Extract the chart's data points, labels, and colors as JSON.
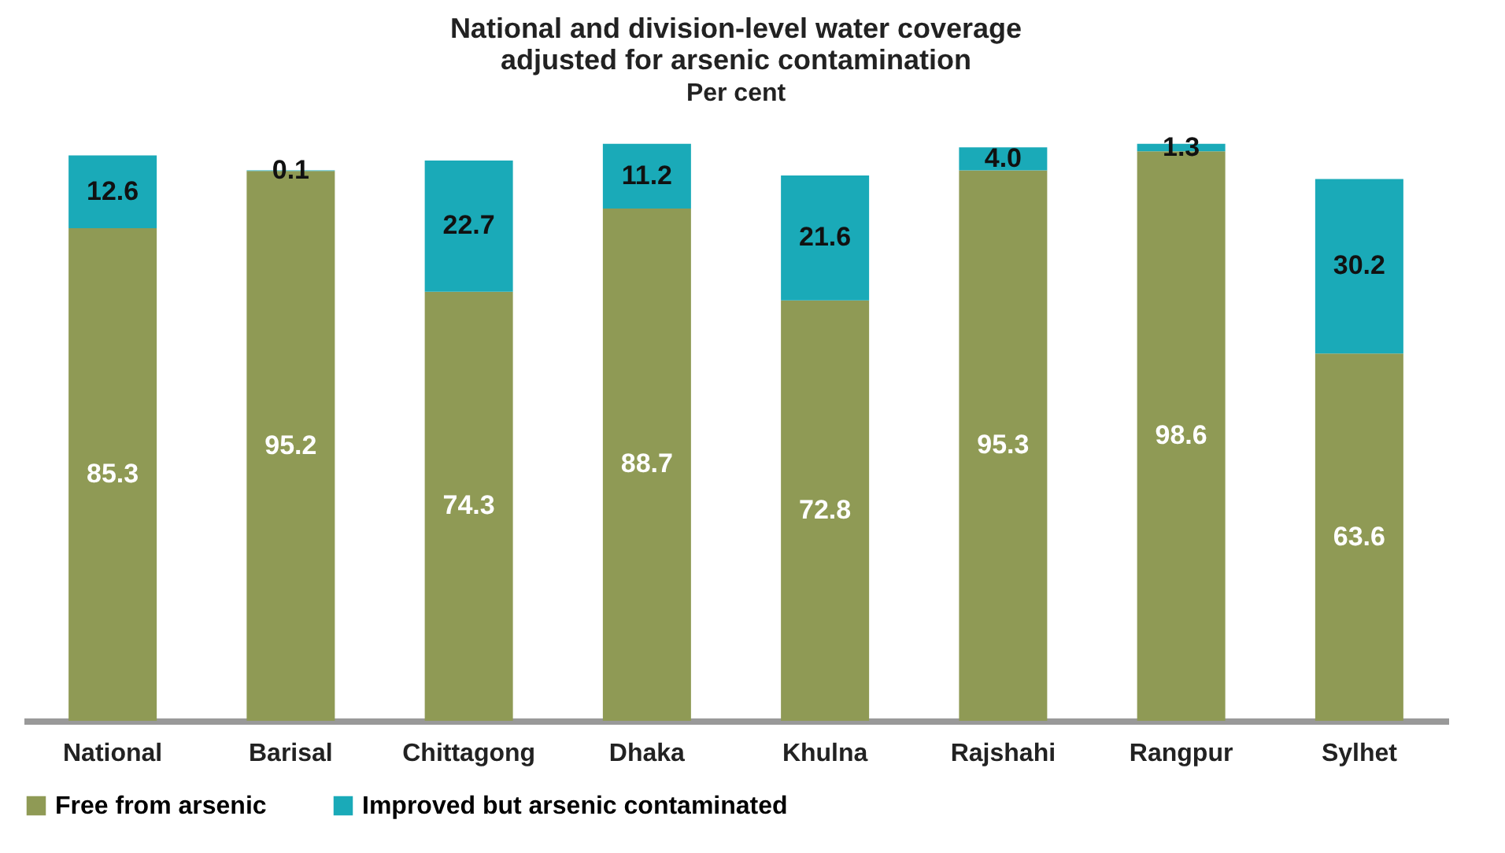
{
  "chart_data": {
    "type": "bar",
    "title": "National and division-level water coverage adjusted for arsenic contamination",
    "subtitle": "Per cent",
    "categories": [
      "National",
      "Barisal",
      "Chittagong",
      "Dhaka",
      "Khulna",
      "Rajshahi",
      "Rangpur",
      "Sylhet"
    ],
    "series": [
      {
        "name": "Free from arsenic",
        "color": "#8f9a55",
        "values": [
          85.3,
          95.2,
          74.3,
          88.7,
          72.8,
          95.3,
          98.6,
          63.6
        ]
      },
      {
        "name": "Improved but arsenic contaminated",
        "color": "#1aaab8",
        "values": [
          12.6,
          0.1,
          22.7,
          11.2,
          21.6,
          4.0,
          1.3,
          30.2
        ],
        "value_labels": [
          "12.6",
          "0.1",
          "22.7",
          "11.2",
          "21.6",
          "4.0",
          "1.3",
          "30.2"
        ]
      }
    ],
    "stacked": true,
    "ylim": [
      0,
      100
    ],
    "data_labels": true,
    "legend": "bottom",
    "tick_labels": "x"
  }
}
